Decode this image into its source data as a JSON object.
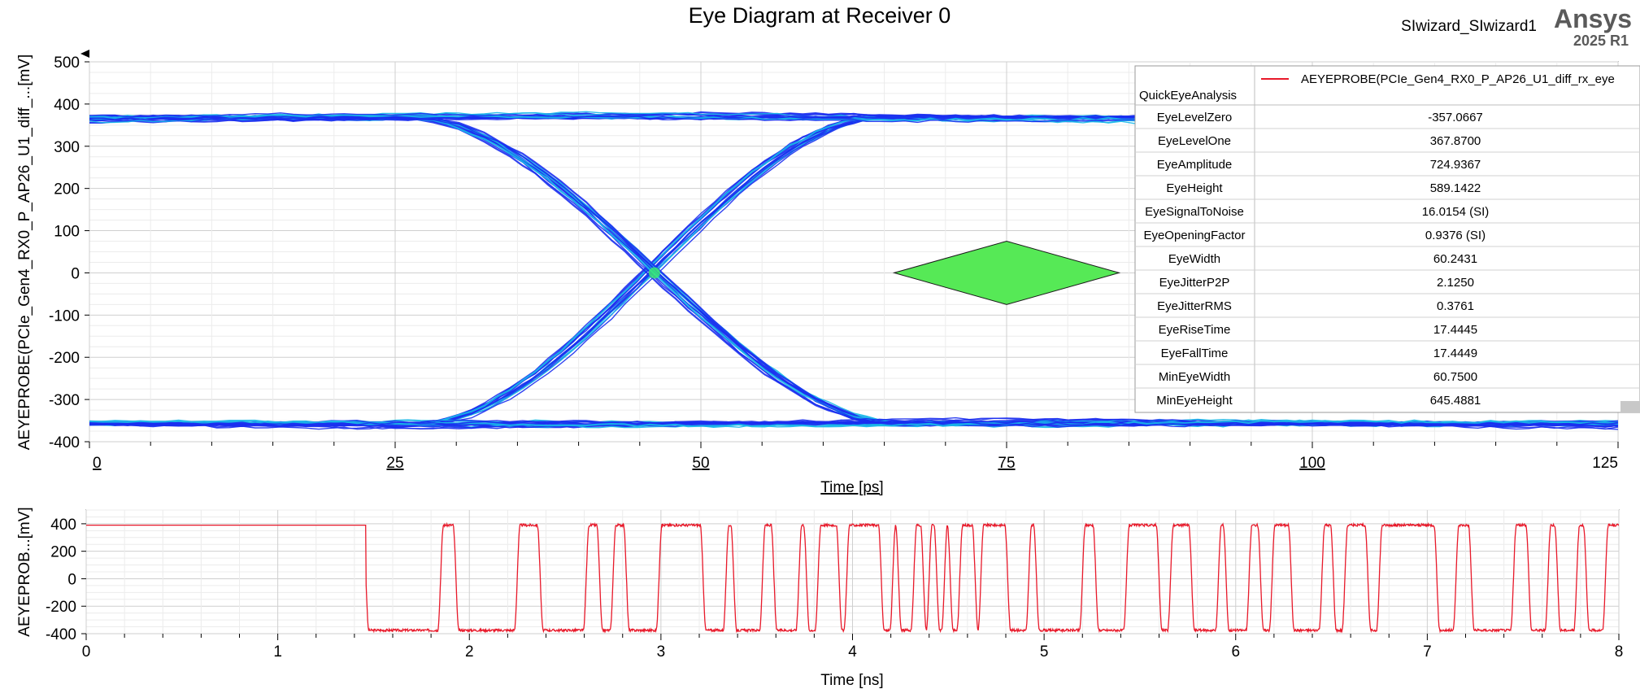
{
  "page": {
    "title": "Eye Diagram at Receiver 0",
    "design_name": "SIwizard_SIwizard1",
    "brand": "Ansys",
    "brand_version": "2025 R1"
  },
  "colors": {
    "eye_traces": "#1b2ff0",
    "eye_traces_dense": "#18b8e8",
    "eye_center": "#3cf06a",
    "mask_fill": "#56e956",
    "waveform": "#e8192a",
    "grid": "#d4d4d4"
  },
  "chart_data": [
    {
      "type": "line",
      "subtype": "eye-diagram",
      "ylabel": "AEYEPROBE(PCIe_Gen4_RX0_P_AP26_U1_diff_...[mV]",
      "xlabel": "Time [ps]",
      "xlim": [
        0,
        125
      ],
      "ylim": [
        -400,
        500
      ],
      "xticks": [
        0,
        25,
        50,
        75,
        100,
        125
      ],
      "yticks": [
        -400,
        -300,
        -200,
        -100,
        0,
        100,
        200,
        300,
        400,
        500
      ],
      "grid": true,
      "eye": {
        "level_one": 367.87,
        "level_zero": -357.07,
        "crossing": [
          46.2,
          0
        ],
        "rise_start": 27,
        "rise_end": 65,
        "fall_start": 26,
        "fall_end": 66
      },
      "mask": {
        "x": [
          65.8,
          75,
          84.2,
          75
        ],
        "y": [
          0,
          75,
          0,
          -75
        ]
      },
      "legend": {
        "placement": "top-right",
        "trace_name": "AEYEPROBE(PCIe_Gen4_RX0_P_AP26_U1_diff_rx_eye",
        "analysis": "QuickEyeAnalysis",
        "rows": [
          {
            "name": "EyeLevelZero",
            "value": "-357.0667"
          },
          {
            "name": "EyeLevelOne",
            "value": "367.8700"
          },
          {
            "name": "EyeAmplitude",
            "value": "724.9367"
          },
          {
            "name": "EyeHeight",
            "value": "589.1422"
          },
          {
            "name": "EyeSignalToNoise",
            "value": "16.0154 (SI)"
          },
          {
            "name": "EyeOpeningFactor",
            "value": "0.9376 (SI)"
          },
          {
            "name": "EyeWidth",
            "value": "60.2431"
          },
          {
            "name": "EyeJitterP2P",
            "value": "2.1250"
          },
          {
            "name": "EyeJitterRMS",
            "value": "0.3761"
          },
          {
            "name": "EyeRiseTime",
            "value": "17.4445"
          },
          {
            "name": "EyeFallTime",
            "value": "17.4449"
          },
          {
            "name": "MinEyeWidth",
            "value": "60.7500"
          },
          {
            "name": "MinEyeHeight",
            "value": "645.4881"
          }
        ]
      }
    },
    {
      "type": "line",
      "ylabel": "AEYEPROB...[mV]",
      "xlabel": "Time [ns]",
      "xlim": [
        0,
        8
      ],
      "ylim": [
        -400,
        500
      ],
      "xticks": [
        0,
        1,
        2,
        3,
        4,
        5,
        6,
        7,
        8
      ],
      "yticks": [
        -400,
        -200,
        0,
        200,
        400
      ],
      "grid": true,
      "high_level": 390,
      "low_level": -375,
      "initial_high_until": 1.45,
      "transitions": [
        1.46,
        1.85,
        1.93,
        2.25,
        2.37,
        2.61,
        2.68,
        2.75,
        2.82,
        2.99,
        3.22,
        3.34,
        3.38,
        3.53,
        3.59,
        3.72,
        3.76,
        3.82,
        3.93,
        3.97,
        4.15,
        4.21,
        4.24,
        4.32,
        4.37,
        4.4,
        4.44,
        4.48,
        4.51,
        4.56,
        4.64,
        4.67,
        4.81,
        4.92,
        4.96,
        5.2,
        5.27,
        5.43,
        5.6,
        5.66,
        5.77,
        5.91,
        5.95,
        6.07,
        6.13,
        6.19,
        6.29,
        6.45,
        6.51,
        6.57,
        6.69,
        6.75,
        7.05,
        7.15,
        7.23,
        7.45,
        7.53,
        7.63,
        7.68,
        7.78,
        7.83,
        7.93
      ]
    }
  ]
}
